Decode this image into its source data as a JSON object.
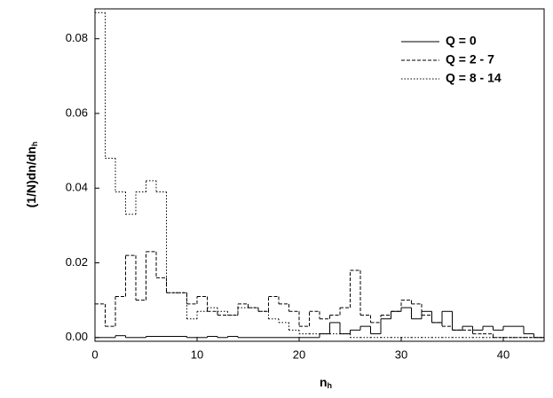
{
  "chart_data": {
    "type": "histogram",
    "x_label": {
      "text": "n",
      "subscript": "h"
    },
    "y_label": {
      "text": "(1/N)dn/dn",
      "subscript": "h"
    },
    "bins": [
      0,
      1,
      2,
      3,
      4,
      5,
      6,
      7,
      8,
      9,
      10,
      11,
      12,
      13,
      14,
      15,
      16,
      17,
      18,
      19,
      20,
      21,
      22,
      23,
      24,
      25,
      26,
      27,
      28,
      29,
      30,
      31,
      32,
      33,
      34,
      35,
      36,
      37,
      38,
      39,
      40,
      41,
      42,
      43,
      44
    ],
    "xlim": [
      0,
      44
    ],
    "ylim": [
      -0.001,
      0.088
    ],
    "xticks": [
      0,
      10,
      20,
      30,
      40
    ],
    "yticks": [
      {
        "value": 0,
        "label": "0.00"
      },
      {
        "value": 0.02,
        "label": "0.02"
      },
      {
        "value": 0.04,
        "label": "0.04"
      },
      {
        "value": 0.06,
        "label": "0.06"
      },
      {
        "value": 0.08,
        "label": "0.08"
      }
    ],
    "legend": "top-right",
    "series": [
      {
        "name": "Q = 0",
        "color": "#000000",
        "dash": "solid",
        "values": [
          0,
          0,
          0.0005,
          0,
          0,
          0.0003,
          0.0003,
          0.0003,
          0.0003,
          0,
          0,
          0.0003,
          0,
          0.0003,
          0,
          0,
          0,
          0,
          0,
          0,
          0,
          0,
          0.001,
          0.004,
          0.001,
          0.002,
          0.003,
          0.001,
          0.005,
          0.007,
          0.008,
          0.005,
          0.007,
          0.004,
          0.007,
          0.002,
          0.003,
          0.002,
          0.003,
          0.002,
          0.003,
          0.003,
          0.001,
          0
        ]
      },
      {
        "name": "Q = 2 - 7",
        "color": "#000000",
        "dash": "dashed",
        "values": [
          0.009,
          0.003,
          0.011,
          0.022,
          0.01,
          0.023,
          0.016,
          0.012,
          0.012,
          0.009,
          0.011,
          0.007,
          0.006,
          0.006,
          0.009,
          0.008,
          0.007,
          0.011,
          0.009,
          0.007,
          0.003,
          0.007,
          0.005,
          0.006,
          0.008,
          0.018,
          0.006,
          0.004,
          0.006,
          0.007,
          0.01,
          0.009,
          0.006,
          0.004,
          0.003,
          0.002,
          0.002,
          0.001,
          0.001,
          0,
          0,
          0,
          0,
          0
        ]
      },
      {
        "name": "Q = 8 - 14",
        "color": "#000000",
        "dash": "dotted",
        "values": [
          0.087,
          0.048,
          0.039,
          0.033,
          0.039,
          0.042,
          0.039,
          0.012,
          0.012,
          0.005,
          0.007,
          0.008,
          0.007,
          0.006,
          0.008,
          0.008,
          0.007,
          0.005,
          0.004,
          0.002,
          0.001,
          0.001,
          0.001,
          0.001,
          0.001,
          0,
          0,
          0,
          0,
          0,
          0,
          0,
          0,
          0,
          0,
          0,
          0,
          0,
          0,
          0,
          0,
          0,
          0,
          0
        ]
      }
    ]
  }
}
